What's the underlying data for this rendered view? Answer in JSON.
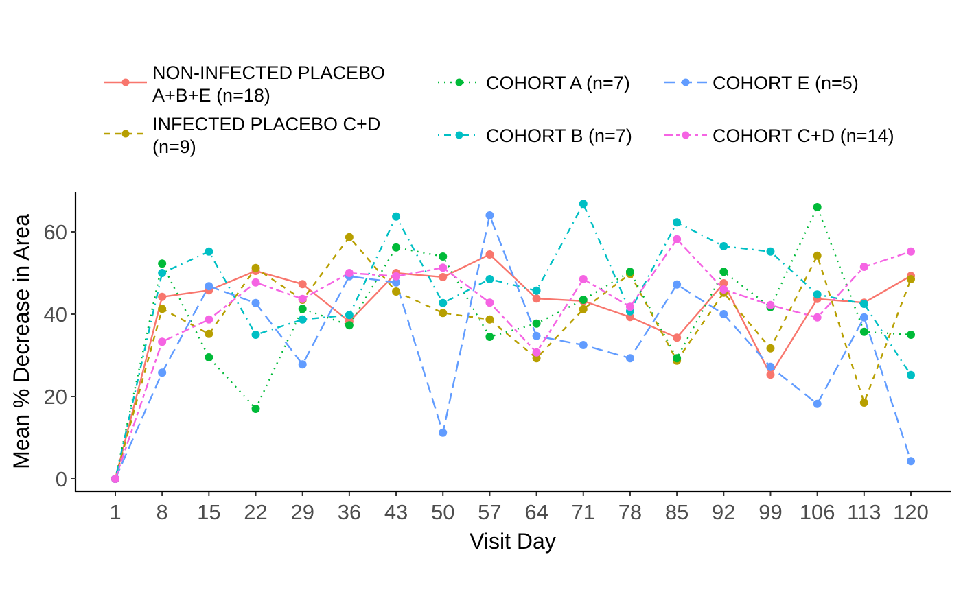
{
  "chart_data": {
    "type": "line",
    "title": "",
    "xlabel": "Visit Day",
    "ylabel": "Mean % Decrease in Area",
    "x": [
      "1",
      "8",
      "15",
      "22",
      "29",
      "36",
      "43",
      "50",
      "57",
      "64",
      "71",
      "78",
      "85",
      "92",
      "99",
      "106",
      "113",
      "120"
    ],
    "y_ticks": [
      0,
      20,
      40,
      60
    ],
    "ylim": [
      -2.5,
      70
    ],
    "grid": false,
    "legend_position": "top",
    "series": [
      {
        "name": "NON-INFECTED PLACEBO A+B+E (n=18)",
        "legend_lines": [
          "NON-INFECTED PLACEBO",
          "A+B+E (n=18)"
        ],
        "color": "#F8766D",
        "linetype": "solid",
        "values": [
          0,
          44.2,
          45.8,
          50.5,
          47.3,
          38.2,
          50.0,
          49.0,
          54.5,
          43.8,
          43.2,
          39.3,
          34.3,
          47.5,
          25.3,
          43.7,
          42.8,
          49.3
        ]
      },
      {
        "name": "INFECTED PLACEBO C+D (n=9)",
        "legend_lines": [
          "INFECTED PLACEBO C+D",
          "(n=9)"
        ],
        "color": "#B79F00",
        "linetype": "dashed",
        "values": [
          0,
          41.3,
          35.2,
          51.2,
          43.5,
          58.7,
          45.5,
          40.3,
          38.7,
          29.3,
          41.2,
          49.8,
          28.7,
          45.2,
          31.7,
          54.2,
          18.5,
          48.5
        ]
      },
      {
        "name": "COHORT A (n=7)",
        "legend_lines": [
          "COHORT A (n=7)"
        ],
        "color": "#00BA38",
        "linetype": "dotted",
        "values": [
          0,
          52.3,
          29.5,
          17.0,
          41.3,
          37.3,
          56.2,
          54.0,
          34.5,
          37.7,
          43.5,
          50.3,
          29.3,
          50.3,
          41.7,
          66.0,
          35.7,
          35.0
        ]
      },
      {
        "name": "COHORT B (n=7)",
        "legend_lines": [
          "COHORT B (n=7)"
        ],
        "color": "#00BFC4",
        "linetype": "dotdash",
        "values": [
          0,
          50.0,
          55.2,
          35.0,
          38.7,
          39.8,
          63.7,
          42.7,
          48.5,
          45.7,
          66.8,
          40.7,
          62.3,
          56.5,
          55.2,
          44.8,
          42.5,
          25.2
        ]
      },
      {
        "name": "COHORT E (n=5)",
        "legend_lines": [
          "COHORT E (n=5)"
        ],
        "color": "#619CFF",
        "linetype": "longdash",
        "values": [
          0,
          25.8,
          46.8,
          42.7,
          27.8,
          49.2,
          47.7,
          11.2,
          64.0,
          34.7,
          32.5,
          29.3,
          47.2,
          40.0,
          27.2,
          18.2,
          39.2,
          4.3
        ]
      },
      {
        "name": "COHORT C+D (n=14)",
        "legend_lines": [
          "COHORT C+D (n=14)"
        ],
        "color": "#F564E3",
        "linetype": "twodash",
        "values": [
          0,
          33.3,
          38.7,
          47.7,
          43.7,
          50.0,
          49.2,
          51.3,
          42.8,
          30.7,
          48.5,
          41.8,
          58.2,
          46.0,
          42.2,
          39.2,
          51.5,
          55.2
        ]
      }
    ]
  }
}
